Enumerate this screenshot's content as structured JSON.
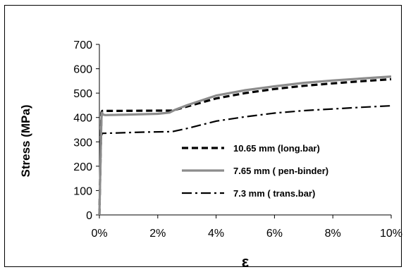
{
  "chart_data": {
    "type": "line",
    "xlabel": "ε",
    "ylabel": "Stress (MPa)",
    "xlim": [
      0,
      0.1
    ],
    "ylim": [
      0,
      700
    ],
    "x_ticks": [
      "0%",
      "2%",
      "4%",
      "6%",
      "8%",
      "10%"
    ],
    "y_ticks": [
      "0",
      "100",
      "200",
      "300",
      "400",
      "500",
      "600",
      "700"
    ],
    "grid": false,
    "legend_position": "lower-right",
    "series": [
      {
        "name": "10.65 mm (long.bar)",
        "color": "#000000",
        "style": "dashed",
        "points": [
          [
            0,
            0
          ],
          [
            0.0007,
            420
          ],
          [
            0.001,
            427
          ],
          [
            0.005,
            427
          ],
          [
            0.02,
            428
          ],
          [
            0.025,
            428
          ],
          [
            0.03,
            445
          ],
          [
            0.04,
            478
          ],
          [
            0.05,
            500
          ],
          [
            0.06,
            517
          ],
          [
            0.07,
            530
          ],
          [
            0.08,
            540
          ],
          [
            0.09,
            549
          ],
          [
            0.1,
            557
          ]
        ]
      },
      {
        "name": "7.65 mm ( pen-binder)",
        "color": "#8c8c8c",
        "style": "solid",
        "points": [
          [
            0,
            0
          ],
          [
            0.0007,
            395
          ],
          [
            0.0009,
            420
          ],
          [
            0.0012,
            412
          ],
          [
            0.002,
            410
          ],
          [
            0.01,
            412
          ],
          [
            0.02,
            415
          ],
          [
            0.024,
            420
          ],
          [
            0.026,
            432
          ],
          [
            0.03,
            450
          ],
          [
            0.04,
            490
          ],
          [
            0.05,
            512
          ],
          [
            0.06,
            528
          ],
          [
            0.07,
            542
          ],
          [
            0.08,
            552
          ],
          [
            0.09,
            560
          ],
          [
            0.1,
            568
          ]
        ]
      },
      {
        "name": "7.3 mm ( trans.bar)",
        "color": "#000000",
        "style": "dashdot",
        "points": [
          [
            0,
            0
          ],
          [
            0.0007,
            325
          ],
          [
            0.001,
            335
          ],
          [
            0.005,
            336
          ],
          [
            0.015,
            340
          ],
          [
            0.025,
            342
          ],
          [
            0.03,
            355
          ],
          [
            0.04,
            385
          ],
          [
            0.05,
            403
          ],
          [
            0.06,
            418
          ],
          [
            0.07,
            428
          ],
          [
            0.08,
            435
          ],
          [
            0.09,
            442
          ],
          [
            0.1,
            448
          ]
        ]
      }
    ]
  }
}
